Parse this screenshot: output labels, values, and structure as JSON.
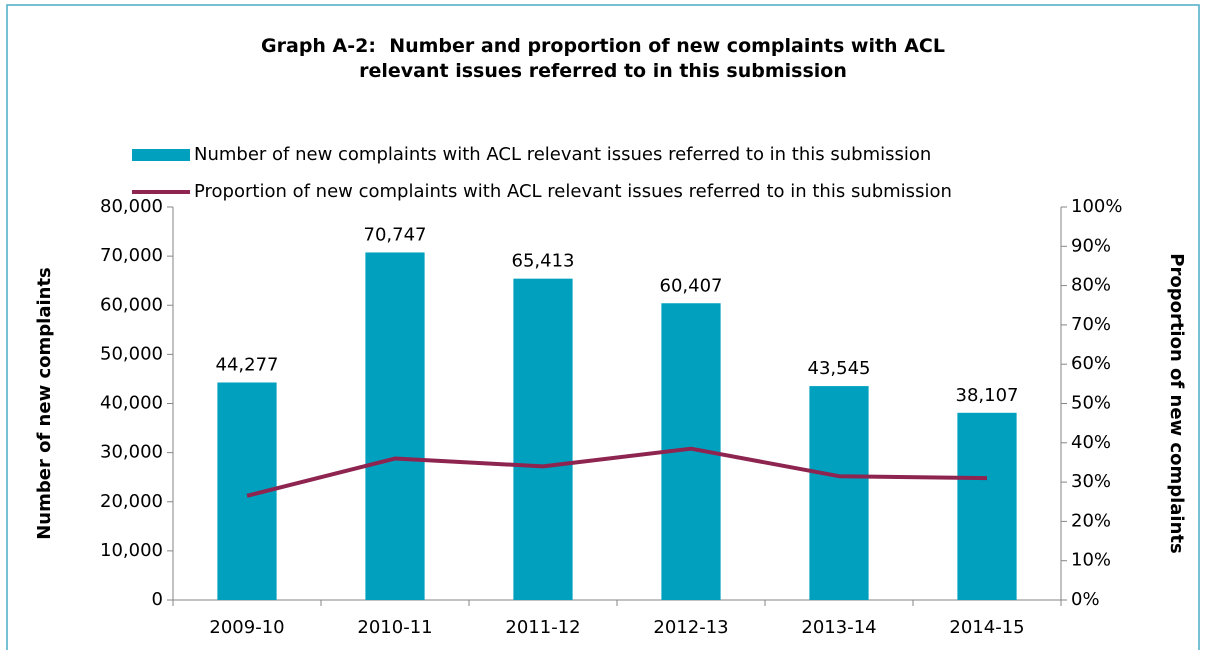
{
  "chart_data": {
    "type": "bar-line",
    "title": "Graph A-2:  Number and proportion of new complaints with ACL relevant issues referred to in this submission",
    "categories": [
      "2009-10",
      "2010-11",
      "2011-12",
      "2012-13",
      "2013-14",
      "2014-15"
    ],
    "series": [
      {
        "name": "Number of new complaints with ACL relevant issues referred to in this submission",
        "type": "bar",
        "color": "#00a0be",
        "values": [
          44277,
          70747,
          65413,
          60407,
          43545,
          38107
        ],
        "value_labels": [
          "44,277",
          "70,747",
          "65,413",
          "60,407",
          "43,545",
          "38,107"
        ]
      },
      {
        "name": "Proportion of new complaints with ACL relevant issues referred to in this submission",
        "type": "line",
        "color": "#8e2450",
        "axis": "y2",
        "values": [
          26.5,
          36,
          34,
          38.5,
          31.5,
          31
        ]
      }
    ],
    "ylabel": "Number of new complaints",
    "y2label": "Proportion of new complaints",
    "ylim": [
      0,
      80000
    ],
    "yticks": [
      0,
      {
        "value": 10000,
        "label": "10,000"
      },
      {
        "value": 20000,
        "label": "20,000"
      },
      {
        "value": 30000,
        "label": "30,000"
      },
      {
        "value": 40000,
        "label": "40,000"
      },
      {
        "value": 50000,
        "label": "50,000"
      },
      {
        "value": 60000,
        "label": "60,000"
      },
      {
        "value": 70000,
        "label": "70,000"
      },
      {
        "value": 80000,
        "label": "80,000"
      }
    ],
    "y2lim": [
      0,
      100
    ],
    "y2ticks": [
      {
        "value": 0,
        "label": "0%"
      },
      {
        "value": 10,
        "label": "10%"
      },
      {
        "value": 20,
        "label": "20%"
      },
      {
        "value": 30,
        "label": "30%"
      },
      {
        "value": 40,
        "label": "40%"
      },
      {
        "value": 50,
        "label": "50%"
      },
      {
        "value": 60,
        "label": "60%"
      },
      {
        "value": 70,
        "label": "70%"
      },
      {
        "value": 80,
        "label": "80%"
      },
      {
        "value": 90,
        "label": "90%"
      },
      {
        "value": 100,
        "label": "100%"
      }
    ],
    "grid": false,
    "legend": "top"
  }
}
